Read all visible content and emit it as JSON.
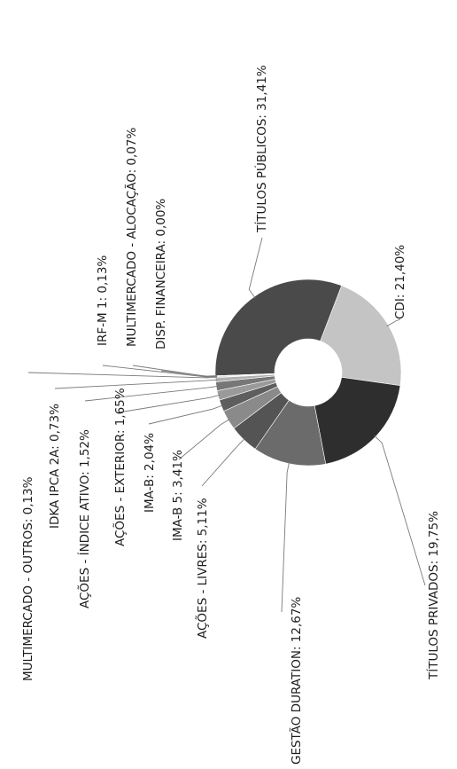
{
  "chart_data": {
    "type": "pie",
    "donut": true,
    "orientation_note": "rotated 90 degrees counter-clockwise",
    "series": [
      {
        "name": "TÍTULOS PÚBLICOS",
        "value": 31.41,
        "label": "TÍTULOS PÚBLICOS: 31,41%",
        "color": "#4a4a4a"
      },
      {
        "name": "CDI",
        "value": 21.4,
        "label": "CDI: 21,40%",
        "color": "#c4c4c4"
      },
      {
        "name": "TÍTULOS PRIVADOS",
        "value": 19.75,
        "label": "TÍTULOS PRIVADOS: 19,75%",
        "color": "#2e2e2e"
      },
      {
        "name": "GESTÃO DURATION",
        "value": 12.67,
        "label": "GESTÃO DURATION: 12,67%",
        "color": "#6b6b6b"
      },
      {
        "name": "AÇÕES - LIVRES",
        "value": 5.11,
        "label": "AÇÕES - LIVRES: 5,11%",
        "color": "#545454"
      },
      {
        "name": "IMA-B 5",
        "value": 3.41,
        "label": "IMA-B 5: 3,41%",
        "color": "#8a8a8a"
      },
      {
        "name": "IMA-B",
        "value": 2.04,
        "label": "IMA-B: 2,04%",
        "color": "#5e5e5e"
      },
      {
        "name": "AÇÕES - EXTERIOR",
        "value": 1.65,
        "label": "AÇÕES - EXTERIOR: 1,65%",
        "color": "#9a9a9a"
      },
      {
        "name": "AÇÕES - ÍNDICE ATIVO",
        "value": 1.52,
        "label": "AÇÕES - ÍNDICE ATIVO: 1,52%",
        "color": "#777777"
      },
      {
        "name": "IDKA IPCA 2A",
        "value": 0.73,
        "label": "IDKA IPCA 2A: 0,73%",
        "color": "#b0b0b0"
      },
      {
        "name": "MULTIMERCADO - OUTROS",
        "value": 0.13,
        "label": "MULTIMERCADO - OUTROS: 0,13%",
        "color": "#888888"
      },
      {
        "name": "IRF-M 1",
        "value": 0.13,
        "label": "IRF-M 1: 0,13%",
        "color": "#3a3a3a"
      },
      {
        "name": "MULTIMERCADO - ALOCAÇÃO",
        "value": 0.07,
        "label": "MULTIMERCADO - ALOCAÇÃO: 0,07%",
        "color": "#666666"
      },
      {
        "name": "DISP. FINANCEIRA",
        "value": 0.0,
        "label": "DISP. FINANCEIRA: 0,00%",
        "color": "#999999"
      }
    ]
  }
}
